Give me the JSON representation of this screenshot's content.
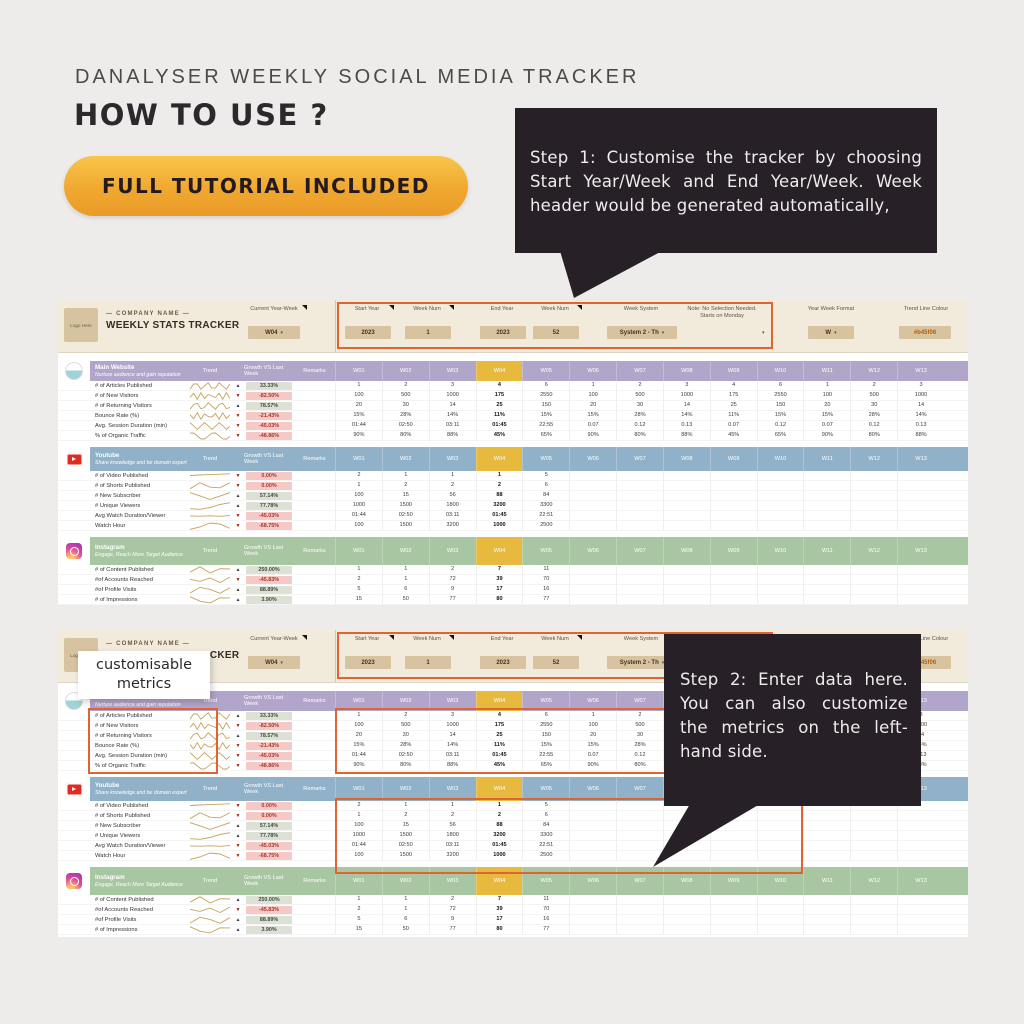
{
  "header": {
    "kicker": "DANALYSER WEEKLY SOCIAL MEDIA TRACKER",
    "title": "HOW TO USE ?",
    "pill_label": "FULL TUTORIAL INCLUDED"
  },
  "bubbles": {
    "step1": "Step 1: Customise the tracker by choosing Start Year/Week and End Year/Week. Week header would be generated automatically,",
    "step2": "Step 2: Enter data here. You can also customize the metrics on the left-hand side."
  },
  "annotations": {
    "customisable_label": "customisable metrics"
  },
  "icons": {
    "caret": "▾",
    "up": "▲",
    "down": "▼"
  },
  "colors": {
    "annotation_orange": "#df6434",
    "bubble_bg": "#272027",
    "topbar_bg": "#f2ebdc",
    "input_tan": "#d8c3a0",
    "website_header": "#b2a5ca",
    "youtube_header": "#90b1c7",
    "instagram_header": "#a9c6a2",
    "week_highlight": "#e7b93c",
    "growth_up_bg": "#dce0d5",
    "growth_up_text": "#3f4a3a",
    "growth_down_bg": "#f5c9c5",
    "growth_down_text": "#a8352a",
    "up_arrow": "#3f3f3f",
    "down_arrow": "#a61c00",
    "sparkline": "#c3a35f",
    "trend_line_setting": "#b45f06"
  },
  "sheet": {
    "topbar": {
      "logo_text": "Logo Here",
      "company_name": "— COMPANY NAME —",
      "title": "WEEKLY STATS TRACKER",
      "current_year_week": {
        "label": "Current Year-Week",
        "value": "W04"
      },
      "start_year": {
        "label": "Start Year",
        "value": "2023"
      },
      "week_num_start": {
        "label": "Week Num",
        "value": "1"
      },
      "end_year": {
        "label": "End Year",
        "value": "2023"
      },
      "week_num_end": {
        "label": "Week Num",
        "value": "52"
      },
      "week_system": {
        "label": "Week System",
        "value": "System 2 - Th"
      },
      "note": {
        "label": "Note: No Selection Needed. Starts on Monday"
      },
      "year_week_format": {
        "label": "Year Week Format",
        "value": "W"
      },
      "trend_line_colour": {
        "label": "Trend Line Colour",
        "value": "#b45f06"
      }
    },
    "col_headers": {
      "trend": "Trend",
      "growth": "Growth VS Last Week",
      "remarks": "Remarks"
    },
    "week_headers": [
      "W01",
      "W02",
      "W03",
      "W04",
      "W05",
      "W06",
      "W07",
      "W08",
      "W09",
      "W10",
      "W11",
      "W12",
      "W13"
    ],
    "highlight_week": "W04",
    "sections": [
      {
        "name": "Main Website",
        "tagline": "Nurture audience and gain reputation",
        "icon": "website",
        "rows": [
          {
            "metric": "# of Articles Published",
            "tone": "up",
            "growth": "33.33%",
            "values": [
              "1",
              "2",
              "3",
              "4",
              "6",
              "1",
              "2",
              "3",
              "4",
              "6",
              "1",
              "2",
              "3"
            ]
          },
          {
            "metric": "# of New Visitors",
            "tone": "down",
            "growth": "-82.50%",
            "values": [
              "100",
              "500",
              "1000",
              "175",
              "2550",
              "100",
              "500",
              "1000",
              "175",
              "2550",
              "100",
              "500",
              "1000"
            ]
          },
          {
            "metric": "# of Returning Visitors",
            "tone": "up",
            "growth": "78.57%",
            "values": [
              "20",
              "30",
              "14",
              "25",
              "150",
              "20",
              "30",
              "14",
              "25",
              "150",
              "20",
              "30",
              "14"
            ]
          },
          {
            "metric": "Bounce Rate (%)",
            "tone": "down",
            "growth": "-21.43%",
            "values": [
              "15%",
              "28%",
              "14%",
              "11%",
              "15%",
              "15%",
              "28%",
              "14%",
              "11%",
              "15%",
              "15%",
              "28%",
              "14%"
            ]
          },
          {
            "metric": "Avg. Session Duration (min)",
            "tone": "down",
            "growth": "-45.03%",
            "values": [
              "01:44",
              "02:50",
              "03:11",
              "01:45",
              "22:55",
              "0.07",
              "0.12",
              "0.13",
              "0.07",
              "0.12",
              "0.07",
              "0.12",
              "0.13"
            ]
          },
          {
            "metric": "% of Organic Traffic",
            "tone": "down",
            "growth": "-48.86%",
            "values": [
              "90%",
              "80%",
              "88%",
              "45%",
              "65%",
              "90%",
              "80%",
              "88%",
              "45%",
              "65%",
              "90%",
              "80%",
              "88%"
            ]
          }
        ]
      },
      {
        "name": "Youtube",
        "tagline": "Share knowledge and be domain expert",
        "icon": "youtube",
        "rows": [
          {
            "metric": "# of Video Published",
            "tone": "down",
            "growth": "0.00%",
            "values": [
              "2",
              "1",
              "1",
              "1",
              "5",
              "",
              "",
              "",
              "",
              "",
              "",
              "",
              ""
            ]
          },
          {
            "metric": "# of Shorts Published",
            "tone": "down",
            "growth": "0.00%",
            "values": [
              "1",
              "2",
              "2",
              "2",
              "6",
              "",
              "",
              "",
              "",
              "",
              "",
              "",
              ""
            ]
          },
          {
            "metric": "# New Subscriber",
            "tone": "up",
            "growth": "57.14%",
            "values": [
              "100",
              "15",
              "56",
              "88",
              "84",
              "",
              "",
              "",
              "",
              "",
              "",
              "",
              ""
            ]
          },
          {
            "metric": "# Unique Viewers",
            "tone": "up",
            "growth": "77.78%",
            "values": [
              "1000",
              "1500",
              "1800",
              "3200",
              "3300",
              "",
              "",
              "",
              "",
              "",
              "",
              "",
              ""
            ]
          },
          {
            "metric": "Avg Watch Duration/Viewer",
            "tone": "down",
            "growth": "-45.03%",
            "values": [
              "01:44",
              "02:50",
              "03:11",
              "01:45",
              "22:51",
              "",
              "",
              "",
              "",
              "",
              "",
              "",
              ""
            ]
          },
          {
            "metric": "Watch Hour",
            "tone": "down",
            "growth": "-68.75%",
            "values": [
              "100",
              "1500",
              "3200",
              "1000",
              "2500",
              "",
              "",
              "",
              "",
              "",
              "",
              "",
              ""
            ]
          }
        ]
      },
      {
        "name": "Instagram",
        "tagline": "Engage, Reach More Target Audience",
        "icon": "instagram",
        "rows": [
          {
            "metric": "# of Content Published",
            "tone": "up",
            "growth": "250.00%",
            "values": [
              "1",
              "1",
              "2",
              "7",
              "11",
              "",
              "",
              "",
              "",
              "",
              "",
              "",
              ""
            ]
          },
          {
            "metric": "#of Accounts Reached",
            "tone": "down",
            "growth": "-45.83%",
            "values": [
              "2",
              "1",
              "72",
              "39",
              "70",
              "",
              "",
              "",
              "",
              "",
              "",
              "",
              ""
            ]
          },
          {
            "metric": "#of Profile Visits",
            "tone": "up",
            "growth": "88.89%",
            "values": [
              "5",
              "6",
              "9",
              "17",
              "16",
              "",
              "",
              "",
              "",
              "",
              "",
              "",
              ""
            ]
          },
          {
            "metric": "# of Impressions",
            "tone": "up",
            "growth": "3.90%",
            "values": [
              "15",
              "50",
              "77",
              "80",
              "77",
              "",
              "",
              "",
              "",
              "",
              "",
              "",
              ""
            ]
          }
        ]
      }
    ]
  }
}
